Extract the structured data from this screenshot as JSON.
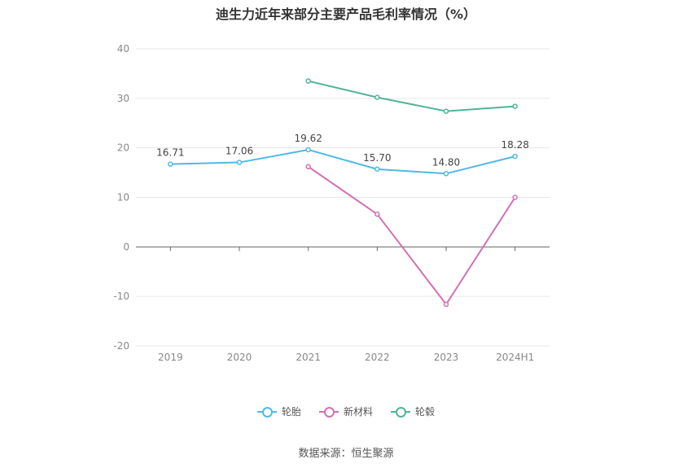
{
  "chart_data": {
    "type": "line",
    "title": "迪生力近年来部分主要产品毛利率情况（%）",
    "categories": [
      "2019",
      "2020",
      "2021",
      "2022",
      "2023",
      "2024H1"
    ],
    "ylim": [
      -20,
      40
    ],
    "yticks": [
      40,
      30,
      20,
      10,
      0,
      -10,
      -20
    ],
    "grid": true,
    "legend_position": "bottom",
    "series": [
      {
        "name": "轮胎",
        "color": "#4fb8e8",
        "values": [
          16.71,
          17.06,
          19.62,
          15.7,
          14.8,
          18.28
        ],
        "show_labels": true
      },
      {
        "name": "新材料",
        "color": "#d36fb3",
        "values": [
          null,
          null,
          16.2,
          6.6,
          -11.6,
          10.0
        ],
        "show_labels": false
      },
      {
        "name": "轮毂",
        "color": "#4fb597",
        "values": [
          null,
          null,
          33.5,
          30.2,
          27.4,
          28.4
        ],
        "show_labels": false
      }
    ]
  },
  "source": "数据来源：恒生聚源"
}
